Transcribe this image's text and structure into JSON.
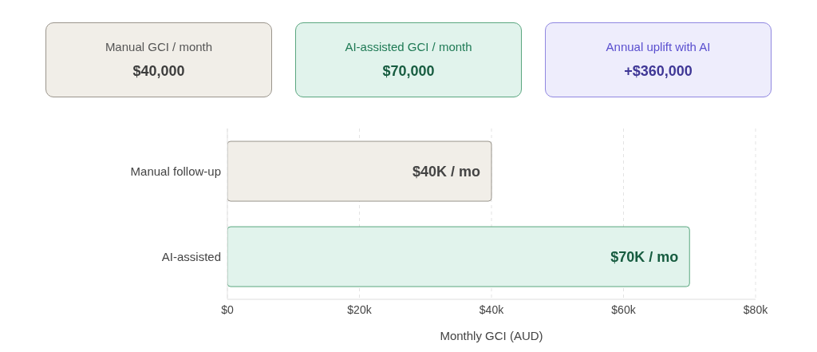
{
  "chart_data": [
    {
      "type": "other",
      "title": "Manual GCI / month",
      "annotations": [
        "$40,000"
      ],
      "color": "#f1eee8"
    },
    {
      "type": "other",
      "title": "AI-assisted GCI / month",
      "annotations": [
        "$70,000"
      ],
      "color": "#e1f3ec"
    },
    {
      "type": "other",
      "title": "Annual uplift with AI",
      "annotations": [
        "+$360,000"
      ],
      "color": "#eeedfc"
    },
    {
      "type": "bar",
      "orientation": "horizontal",
      "categories": [
        "Manual follow-up",
        "AI-assisted"
      ],
      "values": [
        40000,
        70000
      ],
      "colors": [
        "#f1eee8",
        "#e1f3ec"
      ],
      "value_labels": [
        "$40K / mo",
        "$70K / mo"
      ],
      "xlim": [
        0,
        80000
      ],
      "xticks": [
        {
          "value": 0,
          "label": "$0"
        },
        {
          "value": 20000,
          "label": "$20k"
        },
        {
          "value": 40000,
          "label": "$40k"
        },
        {
          "value": 60000,
          "label": "$60k"
        },
        {
          "value": 80000,
          "label": "$80k"
        }
      ],
      "xlabel": "Monthly GCI (AUD)",
      "grid": "x"
    }
  ]
}
